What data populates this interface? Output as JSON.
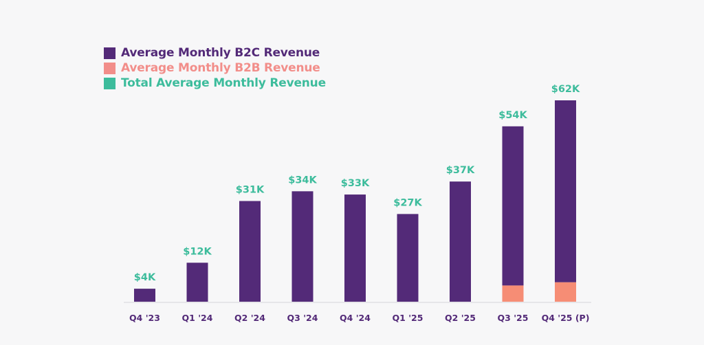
{
  "chart_data": {
    "type": "bar",
    "stacked": true,
    "title": "",
    "xlabel": "",
    "ylabel": "",
    "ylim": [
      0,
      62
    ],
    "grid": false,
    "legend_position": "top-left",
    "categories": [
      "Q4 '23",
      "Q1 '24",
      "Q2 '24",
      "Q3 '24",
      "Q4 '24",
      "Q1 '25",
      "Q2 '25",
      "Q3 '25",
      "Q4 '25 (P)"
    ],
    "series": [
      {
        "name": "Average Monthly B2B Revenue",
        "color": "#f68d75",
        "values": [
          0,
          0,
          0,
          0,
          0,
          0,
          0,
          5,
          6
        ]
      },
      {
        "name": "Average Monthly B2C Revenue",
        "color": "#532a78",
        "values": [
          4,
          12,
          31,
          34,
          33,
          27,
          37,
          49,
          56
        ]
      }
    ],
    "totals": [
      4,
      12,
      31,
      34,
      33,
      27,
      37,
      54,
      62
    ],
    "total_labels": [
      "$4K",
      "$12K",
      "$31K",
      "$34K",
      "$33K",
      "$27K",
      "$37K",
      "$54K",
      "$62K"
    ],
    "units": "thousands USD"
  },
  "legend": [
    {
      "label": "Average Monthly B2C Revenue",
      "color": "#532a78"
    },
    {
      "label": "Average Monthly B2B Revenue",
      "color": "#f28e8a"
    },
    {
      "label": "Total Average Monthly Revenue",
      "color": "#3dbc9c"
    }
  ]
}
